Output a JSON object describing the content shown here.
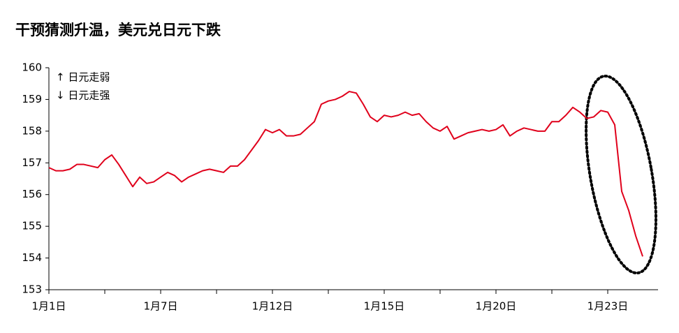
{
  "chart_data": {
    "type": "line",
    "title": "干预猜测升温，美元兑日元下跌",
    "annotations": [
      "↑ 日元走弱",
      "↓ 日元走强"
    ],
    "categories": [
      "1月1日",
      null,
      null,
      null,
      null,
      null,
      null,
      null,
      null,
      null,
      null,
      null,
      null,
      null,
      null,
      null,
      "1月7日",
      null,
      null,
      null,
      null,
      null,
      null,
      null,
      null,
      null,
      null,
      null,
      null,
      null,
      null,
      null,
      "1月12日",
      null,
      null,
      null,
      null,
      null,
      null,
      null,
      null,
      null,
      null,
      null,
      null,
      null,
      null,
      null,
      "1月15日",
      null,
      null,
      null,
      null,
      null,
      null,
      null,
      null,
      null,
      null,
      null,
      null,
      null,
      null,
      null,
      "1月20日",
      null,
      null,
      null,
      null,
      null,
      null,
      null,
      null,
      null,
      null,
      null,
      null,
      null,
      null,
      null,
      "1月23日",
      null,
      null,
      null,
      null,
      null
    ],
    "values": [
      156.85,
      156.75,
      156.75,
      156.8,
      156.95,
      156.95,
      156.9,
      156.85,
      157.1,
      157.25,
      156.95,
      156.6,
      156.25,
      156.55,
      156.35,
      156.4,
      156.55,
      156.7,
      156.6,
      156.4,
      156.55,
      156.65,
      156.75,
      156.8,
      156.75,
      156.7,
      156.9,
      156.9,
      157.1,
      157.4,
      157.7,
      158.05,
      157.95,
      158.05,
      157.85,
      157.85,
      157.9,
      158.1,
      158.3,
      158.85,
      158.95,
      159.0,
      159.1,
      159.25,
      159.2,
      158.85,
      158.45,
      158.3,
      158.5,
      158.45,
      158.5,
      158.6,
      158.5,
      158.55,
      158.3,
      158.1,
      158.0,
      158.15,
      157.75,
      157.85,
      157.95,
      158.0,
      158.05,
      158.0,
      158.05,
      158.2,
      157.85,
      158.0,
      158.1,
      158.05,
      158.0,
      158.0,
      158.3,
      158.3,
      158.5,
      158.75,
      158.6,
      158.4,
      158.45,
      158.65,
      158.6,
      158.2,
      156.1,
      155.5,
      154.7,
      154.05
    ],
    "color": "#e0001b",
    "ylim": [
      153,
      160
    ],
    "yticks": [
      153,
      154,
      155,
      156,
      157,
      158,
      159,
      160
    ]
  }
}
